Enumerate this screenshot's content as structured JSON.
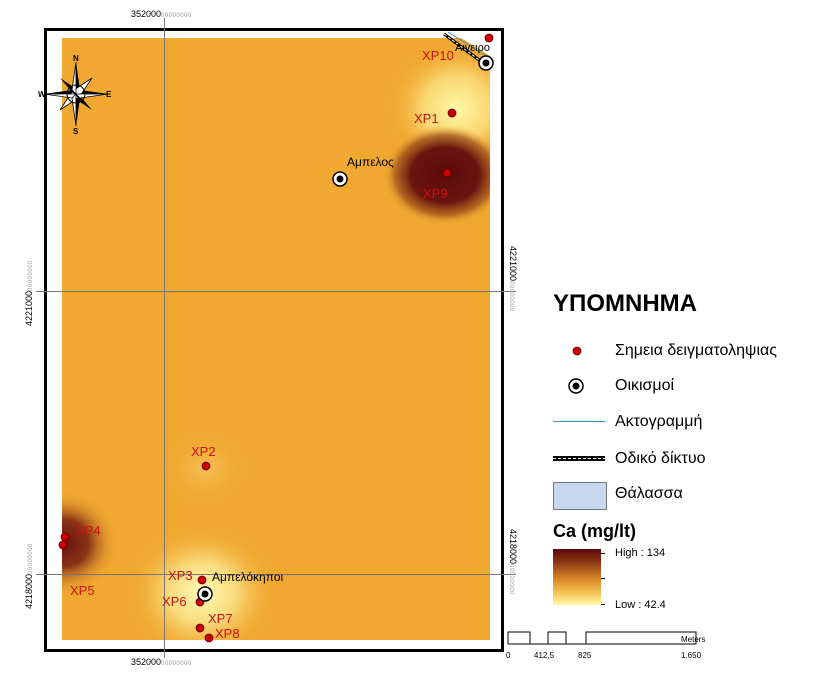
{
  "map": {
    "coords": {
      "top_x": "352000",
      "bottom_x": "352000",
      "left_y_upper": "4221000",
      "left_y_lower": "4218000",
      "right_y_upper": "4221000",
      "right_y_lower": "4218000",
      "suffix": "00000000"
    },
    "samples": [
      {
        "id": "XP1",
        "label": "XP1"
      },
      {
        "id": "XP2",
        "label": "XP2"
      },
      {
        "id": "XP3",
        "label": "XP3"
      },
      {
        "id": "XP4",
        "label": "XP4"
      },
      {
        "id": "XP5",
        "label": "XP5"
      },
      {
        "id": "XP6",
        "label": "XP6"
      },
      {
        "id": "XP7",
        "label": "XP7"
      },
      {
        "id": "XP8",
        "label": "XP8"
      },
      {
        "id": "XP9",
        "label": "XP9"
      },
      {
        "id": "XP10",
        "label": "XP10"
      }
    ],
    "settlements": {
      "ampelos": "Αμπελος",
      "ampelokipoi": "Αμπελόκηποι",
      "aigeiros": "Αιγειρο"
    },
    "compass": {
      "n": "N",
      "s": "S",
      "e": "E",
      "w": "W"
    },
    "colors": {
      "base": "#f0a830",
      "high": "#5c0a0a",
      "low": "#fff9a8",
      "sample_fill": "#cc0000",
      "label_red": "#cc1111"
    }
  },
  "legend": {
    "title": "ΥΠΟΜΝΗΜΑ",
    "items": [
      {
        "symbol": "red-dot",
        "label": "Σημεια δειγματοληψιας"
      },
      {
        "symbol": "settlement-ring",
        "label": "Οικισμοί"
      },
      {
        "symbol": "blue-line",
        "label": "Ακτογραμμή"
      },
      {
        "symbol": "road-line",
        "label": "Οδικό δίκτυο"
      },
      {
        "symbol": "sea-box",
        "label": "Θάλασσα"
      }
    ],
    "ca_title": "Ca (mg/lt)",
    "high_label": "High : 134",
    "low_label": "Low : 42.4",
    "high_value": 134,
    "low_value": 42.4,
    "coastline_color": "#3b8fb5",
    "sea_color": "#c6d9f0"
  },
  "scalebar": {
    "ticks": [
      "0",
      "412,5",
      "825",
      "1.650"
    ],
    "unit": "Meters"
  }
}
